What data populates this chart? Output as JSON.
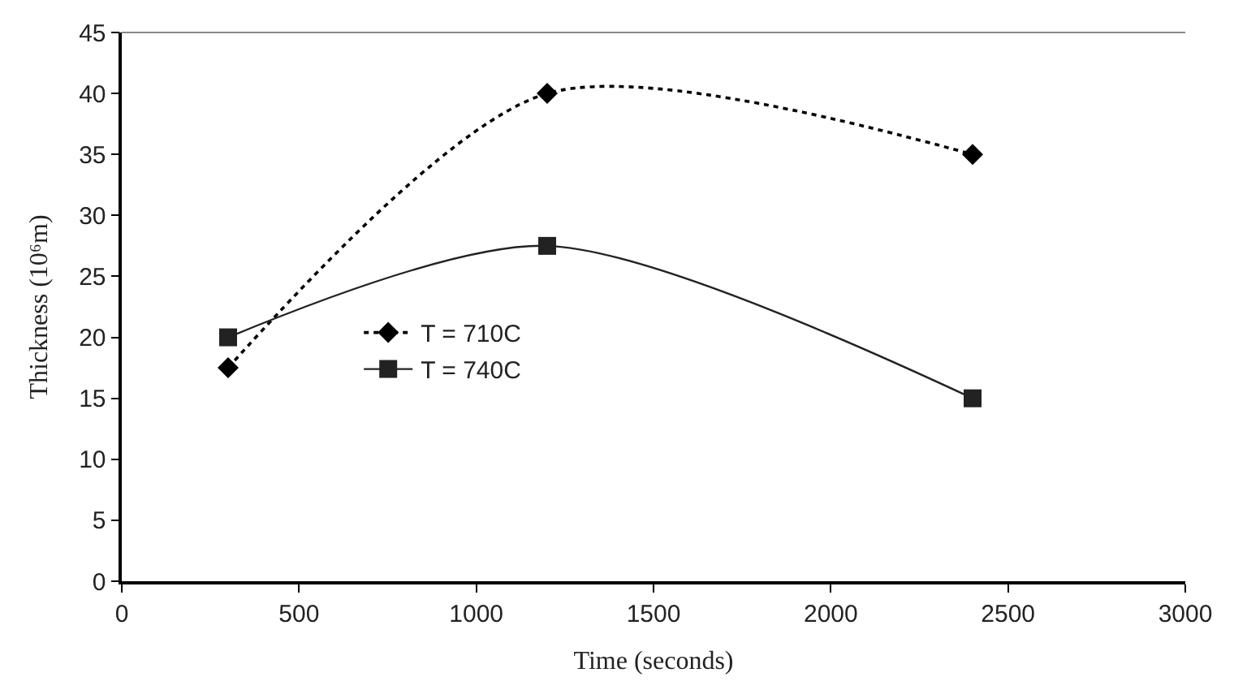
{
  "chart_data": {
    "type": "line",
    "xlabel": "Time (seconds)",
    "ylabel": "Thickness (10⁶m)",
    "x": [
      300,
      1200,
      2400
    ],
    "series": [
      {
        "name": "T = 710C",
        "color": "#000000",
        "values": [
          17.5,
          40,
          35
        ],
        "marker": "diamond",
        "line_style": "dotted"
      },
      {
        "name": "T = 740C",
        "color": "#222222",
        "values": [
          20,
          27.5,
          15
        ],
        "marker": "square",
        "line_style": "solid"
      }
    ],
    "xlim": [
      0,
      3000
    ],
    "xticks": [
      0,
      500,
      1000,
      1500,
      2000,
      2500,
      3000
    ],
    "ylim": [
      0,
      45
    ],
    "yticks": [
      0,
      5,
      10,
      15,
      20,
      25,
      30,
      35,
      40,
      45
    ],
    "legend": "left"
  }
}
